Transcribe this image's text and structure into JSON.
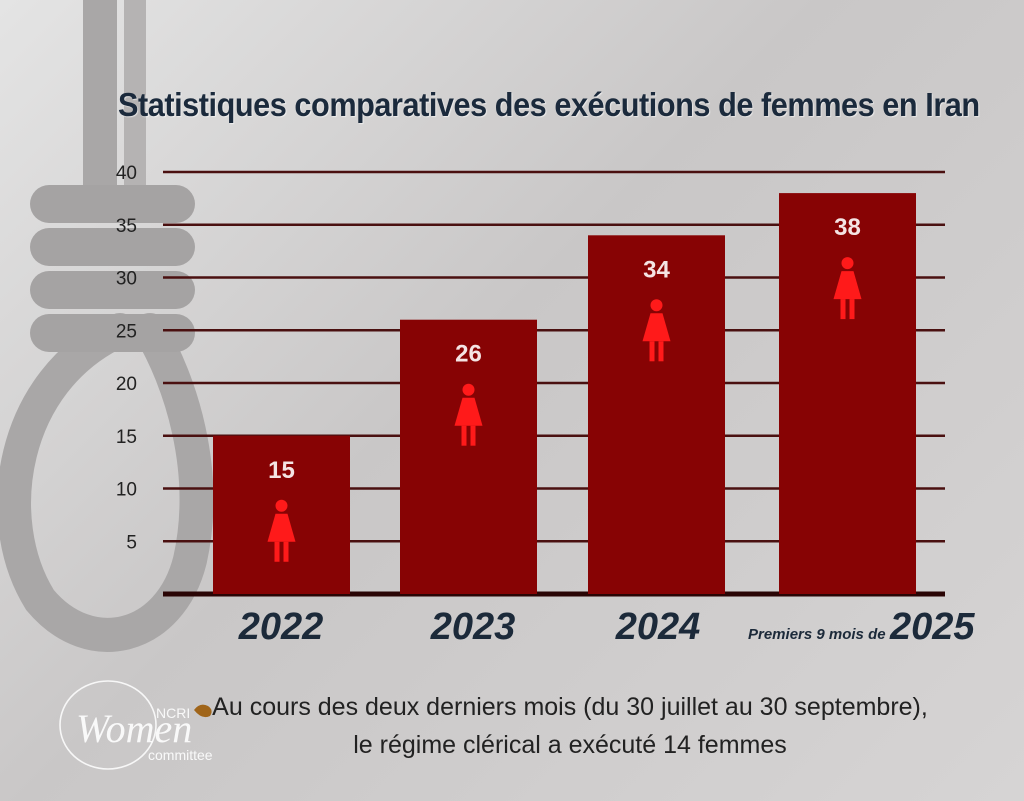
{
  "chart_data": {
    "type": "bar",
    "title": "Statistiques comparatives des exécutions de femmes en Iran",
    "categories": [
      "2022",
      "2023",
      "2024",
      "2025"
    ],
    "category_prefix_last": "Premiers 9 mois de",
    "values": [
      15,
      26,
      34,
      38
    ],
    "ylim": [
      0,
      40
    ],
    "yticks": [
      5,
      10,
      15,
      20,
      25,
      30,
      35,
      40
    ],
    "grid": true,
    "bar_color": "#870304",
    "icon": "woman-icon",
    "icon_color": "#ff1a1a"
  },
  "footnote": {
    "line1": "Au cours des deux derniers mois (du 30 juillet au 30 septembre),",
    "line2": "le régime clérical a exécuté 14 femmes"
  },
  "logo": {
    "text_main": "Women",
    "text_top": "NCRI",
    "text_bottom": "committee"
  }
}
